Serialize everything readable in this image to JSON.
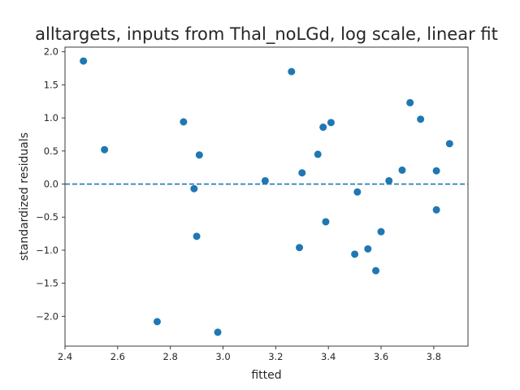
{
  "chart_data": {
    "type": "scatter",
    "title": "alltargets, inputs from Thal_noLGd, log scale, linear fit",
    "xlabel": "fitted",
    "ylabel": "standardized residuals",
    "xlim": [
      2.4,
      3.93
    ],
    "ylim": [
      -2.45,
      2.07
    ],
    "xticks": [
      2.4,
      2.6,
      2.8,
      3.0,
      3.2,
      3.4,
      3.6,
      3.8
    ],
    "xtick_labels": [
      "2.4",
      "2.6",
      "2.8",
      "3.0",
      "3.2",
      "3.4",
      "3.6",
      "3.8"
    ],
    "yticks": [
      2.0,
      1.5,
      1.0,
      0.5,
      0.0,
      -0.5,
      -1.0,
      -1.5,
      -2.0
    ],
    "ytick_labels": [
      "2.0",
      "1.5",
      "1.0",
      "0.5",
      "0.0",
      "−0.5",
      "−1.0",
      "−1.5",
      "−2.0"
    ],
    "grid": false,
    "reference_line": {
      "y": 0.0,
      "style": "dashed"
    },
    "marker_color": "#1f77b4",
    "points": [
      {
        "x": 2.47,
        "y": 1.86
      },
      {
        "x": 2.55,
        "y": 0.52
      },
      {
        "x": 2.75,
        "y": -2.08
      },
      {
        "x": 2.85,
        "y": 0.94
      },
      {
        "x": 2.89,
        "y": -0.07
      },
      {
        "x": 2.9,
        "y": -0.79
      },
      {
        "x": 2.91,
        "y": 0.44
      },
      {
        "x": 2.98,
        "y": -2.24
      },
      {
        "x": 3.16,
        "y": 0.05
      },
      {
        "x": 3.26,
        "y": 1.7
      },
      {
        "x": 3.29,
        "y": -0.96
      },
      {
        "x": 3.3,
        "y": 0.17
      },
      {
        "x": 3.36,
        "y": 0.45
      },
      {
        "x": 3.38,
        "y": 0.86
      },
      {
        "x": 3.39,
        "y": -0.57
      },
      {
        "x": 3.41,
        "y": 0.93
      },
      {
        "x": 3.5,
        "y": -1.06
      },
      {
        "x": 3.51,
        "y": -0.12
      },
      {
        "x": 3.55,
        "y": -0.98
      },
      {
        "x": 3.58,
        "y": -1.31
      },
      {
        "x": 3.6,
        "y": -0.72
      },
      {
        "x": 3.63,
        "y": 0.05
      },
      {
        "x": 3.68,
        "y": 0.21
      },
      {
        "x": 3.71,
        "y": 1.23
      },
      {
        "x": 3.75,
        "y": 0.98
      },
      {
        "x": 3.81,
        "y": 0.2
      },
      {
        "x": 3.81,
        "y": -0.39
      },
      {
        "x": 3.86,
        "y": 0.61
      }
    ]
  }
}
